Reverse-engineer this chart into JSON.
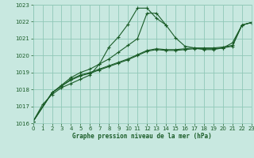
{
  "title": "Graphe pression niveau de la mer (hPa)",
  "bg_color": "#c8e8e0",
  "grid_color": "#90c8b8",
  "line_color": "#1a5c28",
  "x_min": 0,
  "x_max": 23,
  "y_min": 1016,
  "y_max": 1023,
  "x_ticks": [
    0,
    1,
    2,
    3,
    4,
    5,
    6,
    7,
    8,
    9,
    10,
    11,
    12,
    13,
    14,
    15,
    16,
    17,
    18,
    19,
    20,
    21,
    22,
    23
  ],
  "y_ticks": [
    1016,
    1017,
    1018,
    1019,
    1020,
    1021,
    1022,
    1023
  ],
  "series": [
    {
      "x": [
        0,
        1,
        2,
        3,
        4,
        5,
        6,
        7,
        8,
        9,
        10,
        11,
        12,
        13,
        14
      ],
      "y": [
        1016.1,
        1017.1,
        1017.7,
        1018.1,
        1018.35,
        1018.6,
        1018.85,
        1019.5,
        1020.5,
        1021.1,
        1021.85,
        1022.8,
        1022.8,
        1022.2,
        1021.8
      ]
    },
    {
      "x": [
        0,
        2,
        3,
        4,
        5,
        6,
        7,
        8,
        9,
        10,
        11,
        12,
        13,
        14,
        15,
        16,
        17,
        18,
        19,
        20,
        21,
        22,
        23
      ],
      "y": [
        1016.1,
        1017.8,
        1018.2,
        1018.55,
        1018.8,
        1018.95,
        1019.15,
        1019.35,
        1019.55,
        1019.75,
        1020.0,
        1020.25,
        1020.35,
        1020.3,
        1020.3,
        1020.35,
        1020.4,
        1020.4,
        1020.4,
        1020.45,
        1020.55,
        1021.8,
        1021.95
      ]
    },
    {
      "x": [
        0,
        2,
        3,
        4,
        5,
        6,
        7,
        8,
        9,
        10,
        11,
        12,
        13,
        14,
        15,
        16,
        17,
        18,
        19,
        20,
        21,
        22,
        23
      ],
      "y": [
        1016.1,
        1017.8,
        1018.2,
        1018.6,
        1018.85,
        1019.0,
        1019.2,
        1019.4,
        1019.6,
        1019.8,
        1020.05,
        1020.3,
        1020.4,
        1020.35,
        1020.35,
        1020.4,
        1020.45,
        1020.45,
        1020.45,
        1020.5,
        1020.6,
        1021.8,
        1021.95
      ]
    },
    {
      "x": [
        0,
        2,
        3,
        4,
        5,
        6,
        7,
        8,
        9,
        10,
        11,
        12,
        13,
        14,
        15,
        16,
        17,
        18,
        19,
        20,
        21,
        22,
        23
      ],
      "y": [
        1016.1,
        1017.8,
        1018.25,
        1018.7,
        1019.0,
        1019.2,
        1019.5,
        1019.8,
        1020.2,
        1020.6,
        1021.0,
        1022.5,
        1022.5,
        1021.8,
        1021.05,
        1020.55,
        1020.45,
        1020.35,
        1020.35,
        1020.45,
        1020.75,
        1021.8,
        1021.95
      ]
    }
  ]
}
